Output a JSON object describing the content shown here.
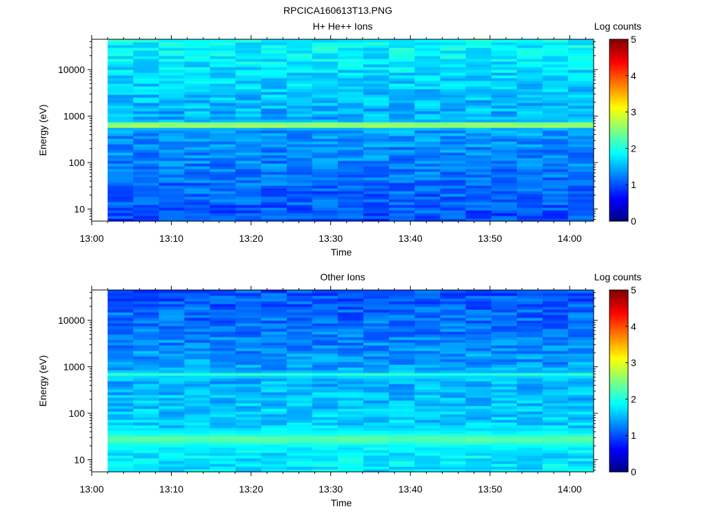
{
  "title": "RPCICA160613T13.PNG",
  "chart_data": [
    {
      "type": "heatmap",
      "title": "H+ He++ Ions",
      "xlabel": "Time",
      "ylabel": "Energy (eV)",
      "xticks": [
        "13:00",
        "13:10",
        "13:20",
        "13:30",
        "13:40",
        "13:50",
        "14:00"
      ],
      "x_range_minutes": [
        0,
        63
      ],
      "data_start_minute": 2,
      "yticks": [
        "10",
        "100",
        "1000",
        "10000"
      ],
      "y_range_eV": [
        5.5,
        45000
      ],
      "y_scale": "log",
      "colorbar": {
        "label": "Log counts",
        "range": [
          0,
          5
        ],
        "ticks": [
          "0",
          "1",
          "2",
          "3",
          "4",
          "5"
        ],
        "colormap": "jet"
      },
      "features": [
        {
          "energy_eV": 650,
          "log_counts": 3.1
        }
      ],
      "background_log_counts": {
        "high_energy": 1.9,
        "mid_energy": 1.4,
        "low_energy": 1.0
      }
    },
    {
      "type": "heatmap",
      "title": "Other Ions",
      "xlabel": "Time",
      "ylabel": "Energy (eV)",
      "xticks": [
        "13:00",
        "13:10",
        "13:20",
        "13:30",
        "13:40",
        "13:50",
        "14:00"
      ],
      "x_range_minutes": [
        0,
        63
      ],
      "data_start_minute": 2,
      "yticks": [
        "10",
        "100",
        "1000",
        "10000"
      ],
      "y_range_eV": [
        5.5,
        45000
      ],
      "y_scale": "log",
      "colorbar": {
        "label": "Log counts",
        "range": [
          0,
          5
        ],
        "ticks": [
          "0",
          "1",
          "2",
          "3",
          "4",
          "5"
        ],
        "colormap": "jet"
      },
      "features": [
        {
          "energy_eV": 680,
          "log_counts": 2.1
        },
        {
          "energy_eV": 28,
          "log_counts": 2.3
        }
      ],
      "background_log_counts": {
        "high_energy": 1.0,
        "mid_energy": 1.5,
        "low_energy": 1.8
      }
    }
  ]
}
